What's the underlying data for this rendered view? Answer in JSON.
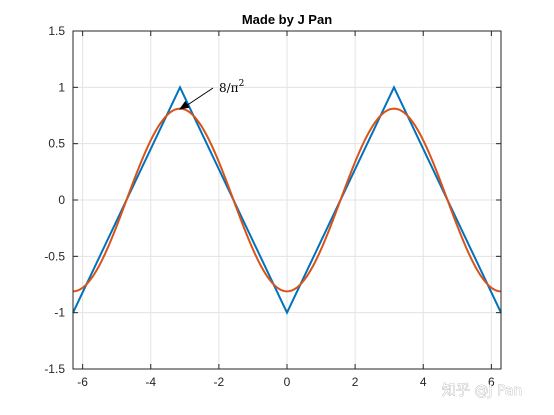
{
  "chart_data": {
    "type": "line",
    "title": "Made by J Pan",
    "xlabel": "",
    "ylabel": "",
    "xlim": [
      -6.2832,
      6.2832
    ],
    "ylim": [
      -1.5,
      1.5
    ],
    "xticks": [
      -6,
      -4,
      -2,
      0,
      2,
      4,
      6
    ],
    "yticks": [
      -1.5,
      -1,
      -0.5,
      0,
      0.5,
      1,
      1.5
    ],
    "xtick_labels": [
      "-6",
      "-4",
      "-2",
      "0",
      "2",
      "4",
      "6"
    ],
    "ytick_labels": [
      "-1.5",
      "-1",
      "-0.5",
      "0",
      "0.5",
      "1",
      "1.5"
    ],
    "grid": true,
    "series": [
      {
        "color": "#0072BD",
        "x": [
          -6.2832,
          -3.1416,
          0,
          3.1416,
          6.2832
        ],
        "y": [
          -1,
          1,
          -1,
          1,
          -1
        ]
      },
      {
        "color": "#D95319",
        "x": [
          -6.2832,
          -5.4978,
          -4.7124,
          -3.927,
          -3.1416,
          -2.3562,
          -1.5708,
          -0.7854,
          0,
          0.7854,
          1.5708,
          2.3562,
          3.1416,
          3.927,
          4.7124,
          5.4978,
          6.2832
        ],
        "y": [
          -0.811,
          -0.573,
          0,
          0.573,
          0.811,
          0.573,
          0,
          -0.573,
          -0.811,
          -0.573,
          0,
          0.573,
          0.811,
          0.573,
          0,
          -0.573,
          -0.811
        ]
      }
    ],
    "annotation": {
      "text": "8/π",
      "superscript": "2",
      "x": -3.1416,
      "y": 0.811
    },
    "watermark": "知乎 @J Pan"
  }
}
